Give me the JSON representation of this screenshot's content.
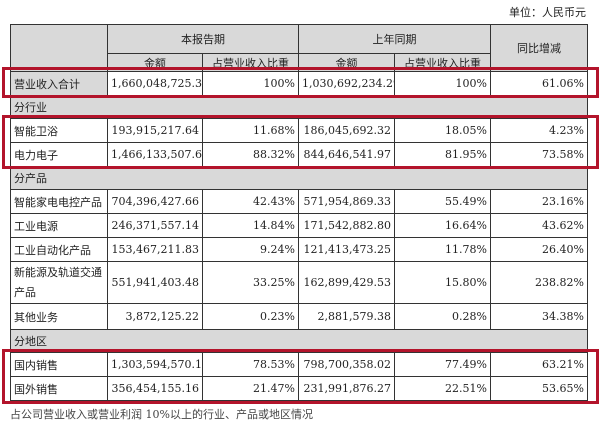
{
  "unit_label": "单位：人民币元",
  "headers": {
    "current_period": "本报告期",
    "prior_period": "上年同期",
    "yoy": "同比增减",
    "amount": "金额",
    "share": "占营业收入比重"
  },
  "total": {
    "label": "营业收入合计",
    "cur_amt": "1,660,048,725.33",
    "cur_pct": "100%",
    "prev_amt": "1,030,692,234.29",
    "prev_pct": "100%",
    "yoy": "61.06%"
  },
  "sections": [
    {
      "title": "分行业",
      "rows": [
        {
          "label": "智能卫浴",
          "cur_amt": "193,915,217.64",
          "cur_pct": "11.68%",
          "prev_amt": "186,045,692.32",
          "prev_pct": "18.05%",
          "yoy": "4.23%"
        },
        {
          "label": "电力电子",
          "cur_amt": "1,466,133,507.69",
          "cur_pct": "88.32%",
          "prev_amt": "844,646,541.97",
          "prev_pct": "81.95%",
          "yoy": "73.58%"
        }
      ]
    },
    {
      "title": "分产品",
      "rows": [
        {
          "label": "智能家电电控产品",
          "cur_amt": "704,396,427.66",
          "cur_pct": "42.43%",
          "prev_amt": "571,954,869.33",
          "prev_pct": "55.49%",
          "yoy": "23.16%"
        },
        {
          "label": "工业电源",
          "cur_amt": "246,371,557.14",
          "cur_pct": "14.84%",
          "prev_amt": "171,542,882.80",
          "prev_pct": "16.64%",
          "yoy": "43.62%"
        },
        {
          "label": "工业自动化产品",
          "cur_amt": "153,467,211.83",
          "cur_pct": "9.24%",
          "prev_amt": "121,413,473.25",
          "prev_pct": "11.78%",
          "yoy": "26.40%"
        },
        {
          "label": "新能源及轨道交通产品",
          "cur_amt": "551,941,403.48",
          "cur_pct": "33.25%",
          "prev_amt": "162,899,429.53",
          "prev_pct": "15.80%",
          "yoy": "238.82%"
        },
        {
          "label": "其他业务",
          "cur_amt": "3,872,125.22",
          "cur_pct": "0.23%",
          "prev_amt": "2,881,579.38",
          "prev_pct": "0.28%",
          "yoy": "34.38%"
        }
      ]
    },
    {
      "title": "分地区",
      "rows": [
        {
          "label": "国内销售",
          "cur_amt": "1,303,594,570.17",
          "cur_pct": "78.53%",
          "prev_amt": "798,700,358.02",
          "prev_pct": "77.49%",
          "yoy": "63.21%"
        },
        {
          "label": "国外销售",
          "cur_amt": "356,454,155.16",
          "cur_pct": "21.47%",
          "prev_amt": "231,991,876.27",
          "prev_pct": "22.51%",
          "yoy": "53.65%"
        }
      ]
    }
  ],
  "footnote": "占公司营业收入或营业利润 10%以上的行业、产品或地区情况",
  "highlight_color": "#b3142b"
}
